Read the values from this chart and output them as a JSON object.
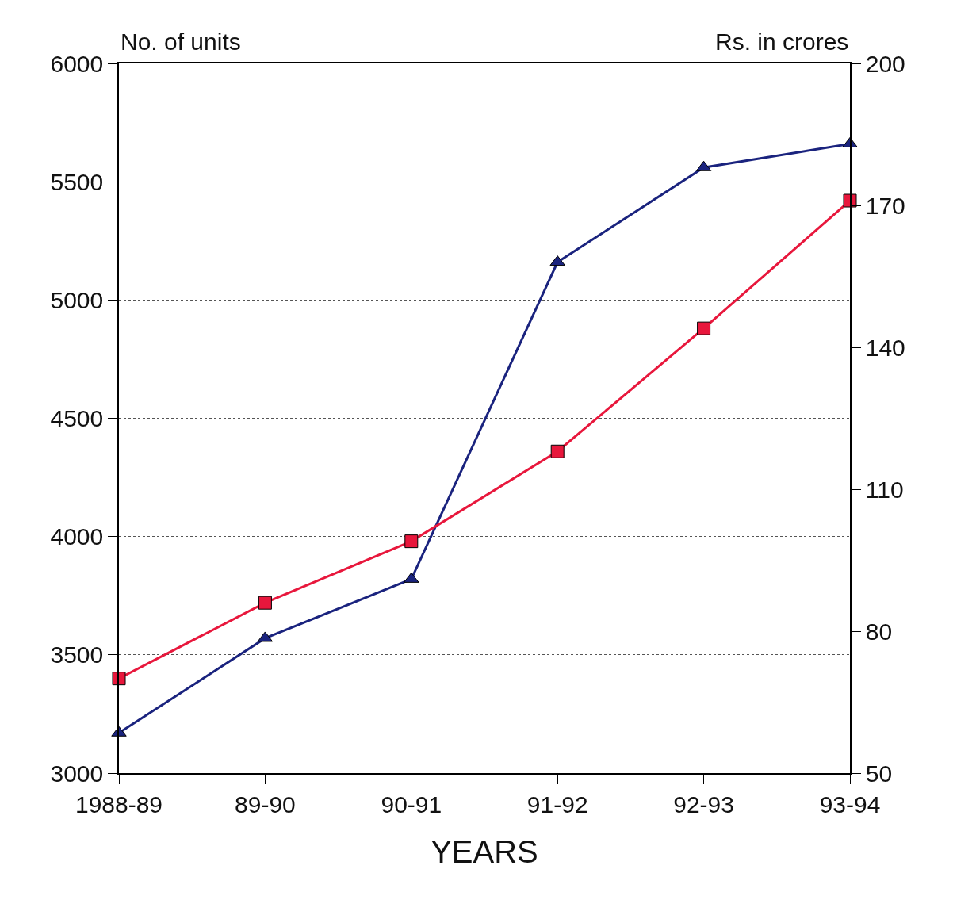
{
  "chart_data": {
    "type": "line",
    "xlabel": "YEARS",
    "ylabel": "No. of units",
    "y2label": "Rs. in crores",
    "categories": [
      "1988-89",
      "89-90",
      "90-91",
      "91-92",
      "92-93",
      "93-94"
    ],
    "series": [
      {
        "color": "#1a237e",
        "marker": "triangle",
        "values": [
          3170,
          3570,
          3820,
          5160,
          5560,
          5660
        ]
      },
      {
        "color": "#e8173c",
        "marker": "square",
        "axis": "y2",
        "values": [
          70,
          86,
          99,
          118,
          144,
          171
        ]
      }
    ],
    "ylim": [
      3000,
      6000
    ],
    "yticks": [
      3000,
      3500,
      4000,
      4500,
      5000,
      5500,
      6000
    ],
    "y2lim": [
      50,
      200
    ],
    "y2ticks": [
      50,
      80,
      110,
      140,
      170,
      200
    ],
    "grid": "y",
    "line_style": "solid"
  }
}
